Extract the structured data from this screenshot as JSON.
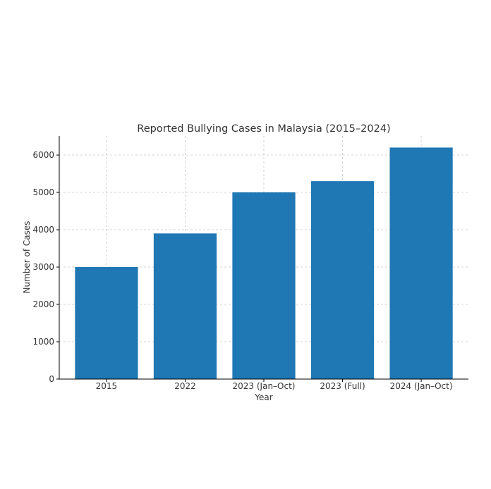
{
  "chart_data": {
    "type": "bar",
    "title": "Reported Bullying Cases in Malaysia (2015–2024)",
    "xlabel": "Year",
    "ylabel": "Number of Cases",
    "categories": [
      "2015",
      "2022",
      "2023 (Jan–Oct)",
      "2023 (Full)",
      "2024 (Jan–Oct)"
    ],
    "values": [
      3000,
      3900,
      5000,
      5300,
      6200
    ],
    "ylim": [
      0,
      6510
    ],
    "yticks": [
      0,
      1000,
      2000,
      3000,
      4000,
      5000,
      6000
    ],
    "grid": true,
    "bar_color": "#1f77b4"
  }
}
